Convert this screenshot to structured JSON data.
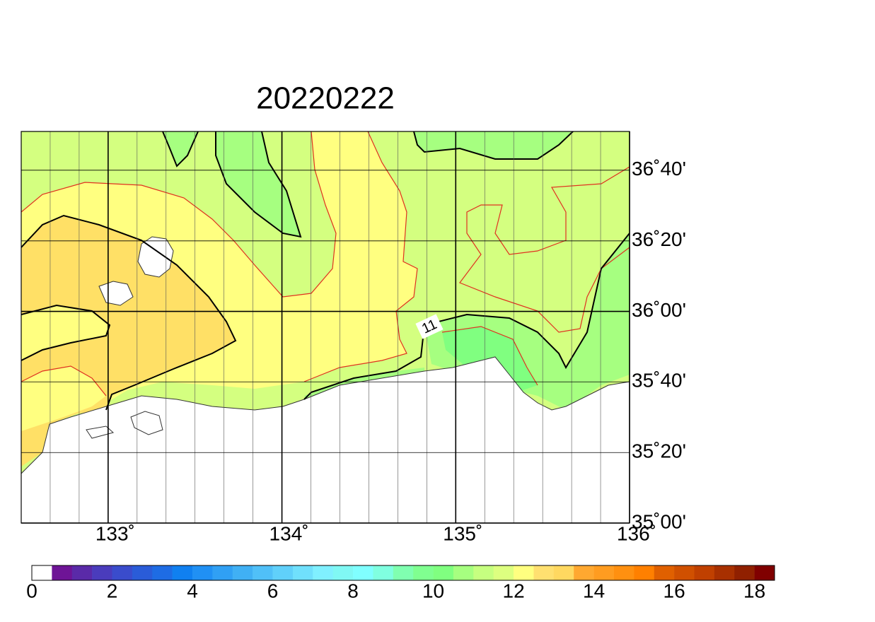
{
  "chart_data": {
    "type": "map",
    "title": "20220222",
    "xlim": [
      132.5,
      136
    ],
    "ylim": [
      35,
      36.85
    ],
    "xticks": [
      {
        "value": 133,
        "label": "133˚"
      },
      {
        "value": 134,
        "label": "134˚"
      },
      {
        "value": 135,
        "label": "135˚"
      },
      {
        "value": 136,
        "label": "136˚"
      }
    ],
    "yticks": [
      {
        "value": 35,
        "label": "35˚00'"
      },
      {
        "value": 35.333,
        "label": "35˚20'"
      },
      {
        "value": 35.667,
        "label": "35˚40'"
      },
      {
        "value": 36,
        "label": "36˚00'"
      },
      {
        "value": 36.333,
        "label": "36˚20'"
      },
      {
        "value": 36.667,
        "label": "36˚40'"
      }
    ],
    "grid": true,
    "minor_grid_step": 0.16667,
    "contour_label": "11",
    "colorbar": {
      "range": [
        0,
        18.5
      ],
      "ticks": [
        0,
        2,
        4,
        6,
        8,
        10,
        12,
        14,
        16,
        18
      ],
      "colors": [
        "#ffffff",
        "#6e1496",
        "#5a2aa8",
        "#4a3cbc",
        "#3a4ccc",
        "#2a5cd8",
        "#1e6ce4",
        "#1080f0",
        "#2090f4",
        "#30a0f4",
        "#40b0f4",
        "#50c0f8",
        "#60d0fa",
        "#70e0fc",
        "#80f0ff",
        "#80f8f4",
        "#80ffff",
        "#80ffe0",
        "#80ffb0",
        "#80ff90",
        "#80ff80",
        "#a6ff80",
        "#c6ff80",
        "#ddff80",
        "#ffff80",
        "#ffe070",
        "#ffd860",
        "#ffa830",
        "#ff9c20",
        "#ff9010",
        "#ff8000",
        "#e06000",
        "#d05000",
        "#c04000",
        "#a83000",
        "#902000",
        "#800000"
      ]
    }
  }
}
